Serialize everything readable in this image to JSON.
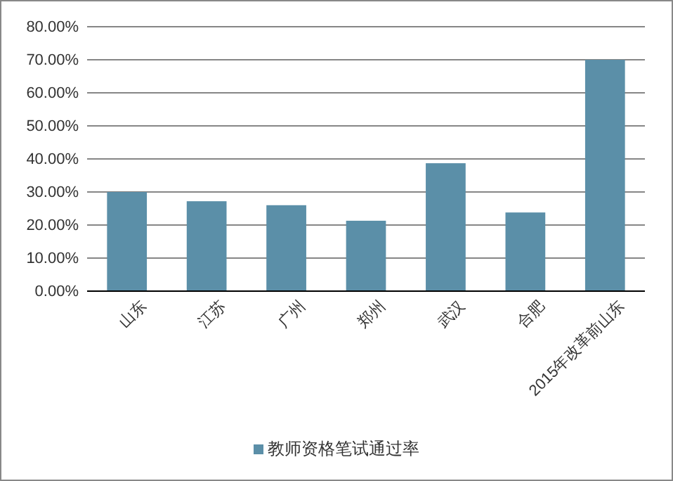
{
  "chart_data": {
    "type": "bar",
    "categories": [
      "山东",
      "江苏",
      "广州",
      "郑州",
      "武汉",
      "合肥",
      "2015年改革前山东"
    ],
    "series": [
      {
        "name": "教师资格笔试通过率",
        "color": "#5b8fa8",
        "values": [
          30,
          27.2,
          26,
          21.3,
          38.7,
          23.8,
          70
        ]
      }
    ],
    "ylim": [
      0,
      80
    ],
    "yticks": [
      {
        "value": 0,
        "label": "0.00%"
      },
      {
        "value": 10,
        "label": "10.00%"
      },
      {
        "value": 20,
        "label": "20.00%"
      },
      {
        "value": 30,
        "label": "30.00%"
      },
      {
        "value": 40,
        "label": "40.00%"
      },
      {
        "value": 50,
        "label": "50.00%"
      },
      {
        "value": 60,
        "label": "60.00%"
      },
      {
        "value": 70,
        "label": "70.00%"
      },
      {
        "value": 80,
        "label": "80.00%"
      }
    ],
    "grid": "y",
    "legend": "bottom"
  }
}
